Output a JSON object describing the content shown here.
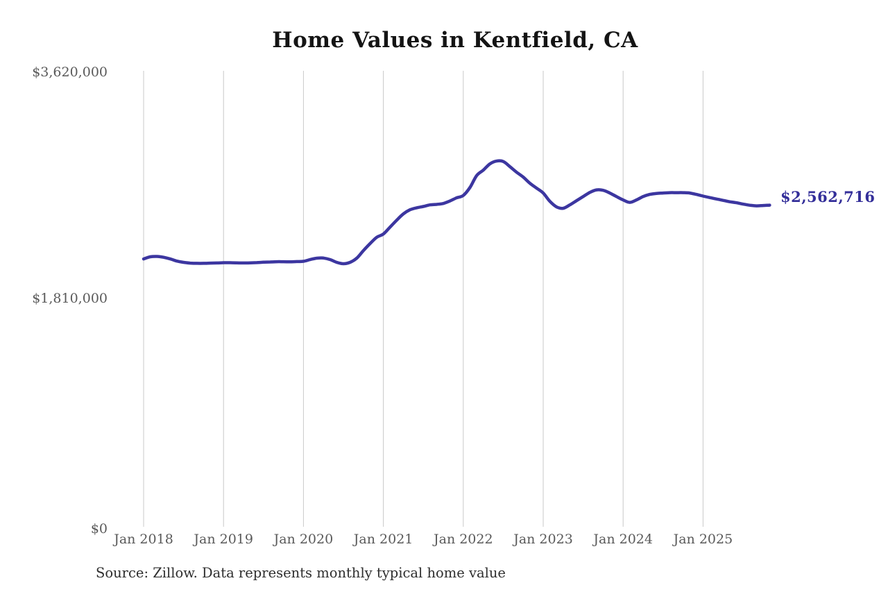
{
  "page": {
    "title": "Home Values in Kentfield, CA",
    "source_note": "Source: Zillow. Data represents monthly typical home value"
  },
  "chart_data": {
    "type": "line",
    "title": "Home Values in Kentfield, CA",
    "xlabel": "",
    "ylabel": "",
    "frequency": "monthly",
    "x_start": "Jan 2018",
    "x_end": "Nov 2025",
    "x_tick_labels": [
      "Jan 2018",
      "Jan 2019",
      "Jan 2020",
      "Jan 2021",
      "Jan 2022",
      "Jan 2023",
      "Jan 2024",
      "Jan 2025"
    ],
    "y_tick_labels": [
      "$0",
      "$1,810,000",
      "$3,620,000"
    ],
    "y_ticks": [
      0,
      1810000,
      3620000
    ],
    "ylim": [
      0,
      3620000
    ],
    "grid": "vertical",
    "legend": "none",
    "line_color": "#3c36a0",
    "gridline_color": "#c9c9c9",
    "last_point_label": "$2,562,716",
    "last_point_value": 2562716,
    "series": [
      {
        "name": "Typical home value",
        "values": [
          2135000,
          2152000,
          2155000,
          2148000,
          2135000,
          2118000,
          2108000,
          2102000,
          2100000,
          2100000,
          2102000,
          2103000,
          2105000,
          2105000,
          2104000,
          2103000,
          2104000,
          2106000,
          2109000,
          2111000,
          2113000,
          2113000,
          2112000,
          2114000,
          2116000,
          2130000,
          2141000,
          2142000,
          2130000,
          2108000,
          2097000,
          2108000,
          2141000,
          2201000,
          2257000,
          2307000,
          2333000,
          2388000,
          2443000,
          2493000,
          2526000,
          2542000,
          2552000,
          2565000,
          2569000,
          2576000,
          2596000,
          2621000,
          2640000,
          2703000,
          2797000,
          2841000,
          2891000,
          2913000,
          2910000,
          2869000,
          2825000,
          2786000,
          2737000,
          2698000,
          2659000,
          2593000,
          2549000,
          2538000,
          2565000,
          2598000,
          2631000,
          2664000,
          2684000,
          2681000,
          2659000,
          2631000,
          2604000,
          2585000,
          2604000,
          2631000,
          2648000,
          2656000,
          2659000,
          2662000,
          2662000,
          2662000,
          2659000,
          2648000,
          2635000,
          2623000,
          2612000,
          2601000,
          2590000,
          2582000,
          2571000,
          2562000,
          2557000,
          2560000,
          2562716
        ]
      }
    ]
  }
}
